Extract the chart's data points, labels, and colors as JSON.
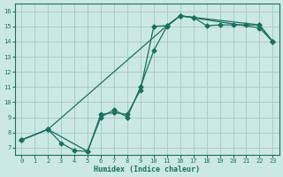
{
  "background_color": "#cce8e4",
  "grid_color": "#aaccc8",
  "line_color": "#1a7060",
  "xlabel": "Humidex (Indice chaleur)",
  "xtick_labels": [
    "0",
    "1",
    "2",
    "3",
    "4",
    "5",
    "6",
    "7",
    "8",
    "9",
    "10",
    "11",
    "16",
    "17",
    "18",
    "19",
    "20",
    "21",
    "22",
    "23"
  ],
  "xtick_pos": [
    0,
    1,
    2,
    3,
    4,
    5,
    6,
    7,
    8,
    9,
    10,
    11,
    12,
    13,
    14,
    15,
    16,
    17,
    18,
    19
  ],
  "yticks": [
    7,
    8,
    9,
    10,
    11,
    12,
    13,
    14,
    15,
    16
  ],
  "xlim": [
    -0.5,
    19.5
  ],
  "ylim": [
    6.5,
    16.5
  ],
  "curve1_x": [
    0,
    2,
    3,
    4,
    5,
    6,
    7,
    8,
    9,
    10,
    11,
    12,
    13,
    14,
    15,
    16,
    17,
    18,
    19
  ],
  "curve1_y": [
    7.5,
    8.2,
    7.3,
    6.8,
    6.75,
    9.2,
    9.3,
    9.2,
    10.8,
    15.0,
    15.05,
    15.7,
    15.6,
    15.05,
    15.1,
    15.1,
    15.1,
    15.1,
    14.0
  ],
  "curve2_x": [
    0,
    2,
    5,
    6,
    7,
    8,
    9,
    10,
    11,
    12,
    13,
    18,
    19
  ],
  "curve2_y": [
    7.5,
    8.2,
    6.75,
    9.0,
    9.5,
    9.0,
    11.0,
    13.4,
    15.0,
    15.7,
    15.6,
    15.1,
    14.0
  ],
  "curve3_x": [
    0,
    2,
    11,
    12,
    18,
    19
  ],
  "curve3_y": [
    7.5,
    8.2,
    15.05,
    15.7,
    14.9,
    14.0
  ],
  "marker": "D",
  "markersize": 2.5,
  "linewidth": 0.9
}
